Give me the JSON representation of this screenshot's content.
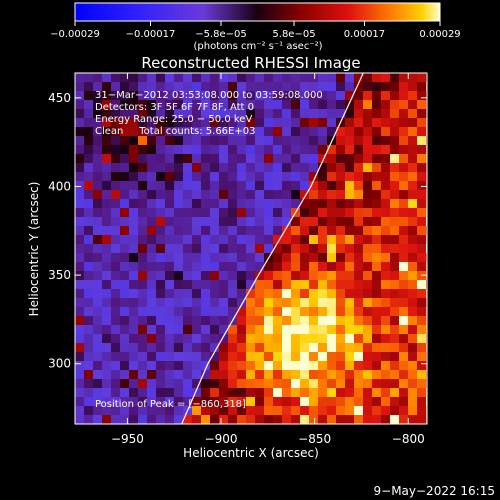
{
  "chart_data": {
    "type": "heatmap",
    "title": "Reconstructed RHESSI Image",
    "xlabel": "Heliocentric X (arcsec)",
    "ylabel": "Heliocentric Y (arcsec)",
    "xlim": [
      -978,
      -790
    ],
    "ylim": [
      266,
      464
    ],
    "xticks": [
      -950,
      -900,
      -850,
      -800
    ],
    "xtick_labels": [
      "−950",
      "−900",
      "−850",
      "−800"
    ],
    "yticks": [
      300,
      350,
      400,
      450
    ],
    "ytick_labels": [
      "300",
      "350",
      "400",
      "450"
    ],
    "colorbar": {
      "range": [
        -0.00029,
        0.00029
      ],
      "ticks": [
        -0.00029,
        -0.00017,
        -5.8e-05,
        5.8e-05,
        0.00017,
        0.00029
      ],
      "tick_labels": [
        "−0.00029",
        "−0.00017",
        "−5.8e−05",
        "5.8e−05",
        "0.00017",
        "0.00029"
      ],
      "unit_label": "(photons cm⁻² s⁻¹ asec⁻²)"
    },
    "annotations": [
      "31−Mar−2012 03:53:08.000 to 03:59:08.000",
      "Detectors: 3F 5F 6F 7F 8F, Att 0",
      "Energy Range: 25.0 − 50.0 keV",
      "Clean     Total counts: 5.66E+03",
      "Position of Peak = [−860,318]"
    ],
    "peak": {
      "x": -860,
      "y": 318
    },
    "limb_line": [
      [
        -921,
        266
      ],
      [
        -907,
        300
      ],
      [
        -880,
        350
      ],
      [
        -852,
        400
      ],
      [
        -824,
        464
      ]
    ],
    "grid": false
  },
  "footer": {
    "date": "9−May−2022 16:15"
  }
}
